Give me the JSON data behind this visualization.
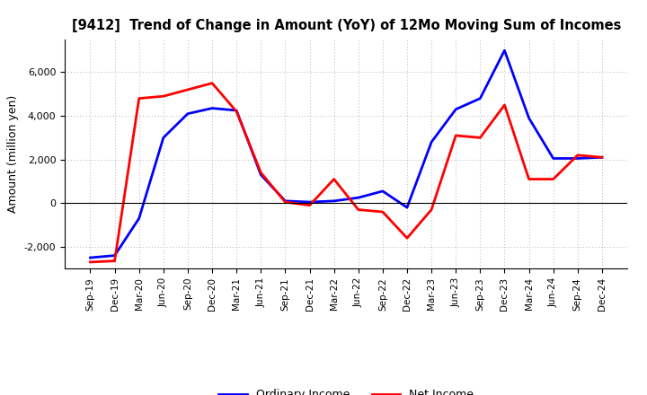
{
  "title": "[9412]  Trend of Change in Amount (YoY) of 12Mo Moving Sum of Incomes",
  "ylabel": "Amount (million yen)",
  "x_labels": [
    "Sep-19",
    "Dec-19",
    "Mar-20",
    "Jun-20",
    "Sep-20",
    "Dec-20",
    "Mar-21",
    "Jun-21",
    "Sep-21",
    "Dec-21",
    "Mar-22",
    "Jun-22",
    "Sep-22",
    "Dec-22",
    "Mar-23",
    "Jun-23",
    "Sep-23",
    "Dec-23",
    "Mar-24",
    "Jun-24",
    "Sep-24",
    "Dec-24"
  ],
  "ordinary_income": [
    -2500,
    -2400,
    -700,
    3000,
    4100,
    4350,
    4250,
    1300,
    100,
    50,
    100,
    250,
    550,
    -200,
    2800,
    4300,
    4800,
    7000,
    3900,
    2050,
    2050,
    2100
  ],
  "net_income": [
    -2700,
    -2650,
    4800,
    4900,
    5200,
    5500,
    4200,
    1400,
    50,
    -100,
    1100,
    -300,
    -400,
    -1600,
    -300,
    3100,
    3000,
    4500,
    1100,
    1100,
    2200,
    2100
  ],
  "ordinary_color": "#0000FF",
  "net_color": "#FF0000",
  "ylim": [
    -3000,
    7500
  ],
  "yticks": [
    -2000,
    0,
    2000,
    4000,
    6000
  ],
  "background_color": "#FFFFFF",
  "grid_color": "#999999"
}
